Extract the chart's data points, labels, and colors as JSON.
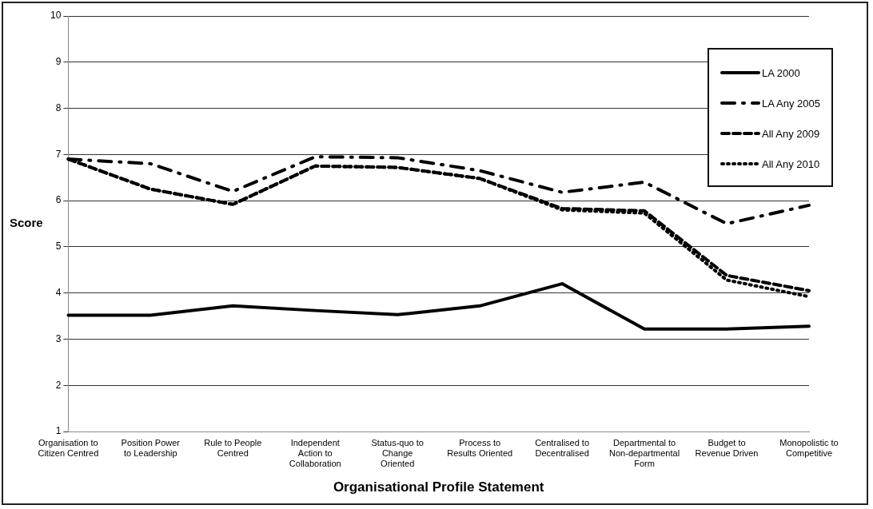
{
  "chart_data": {
    "type": "line",
    "xlabel": "Organisational Profile Statement",
    "ylabel": "Score",
    "categories": [
      "Organisation to Citizen Centred",
      "Position Power to Leadership",
      "Rule to People Centred",
      "Independent Action to Collaboration",
      "Status-quo to Change Oriented",
      "Process to Results Oriented",
      "Centralised to Decentralised",
      "Departmental to Non-departmental Form",
      "Budget to Revenue Driven",
      "Monopolistic to Competitive"
    ],
    "series": [
      {
        "name": "LA 2000",
        "color": "#000000",
        "line_style": "solid",
        "values": [
          3.52,
          3.52,
          3.72,
          3.62,
          3.53,
          3.72,
          4.2,
          3.22,
          3.22,
          3.28
        ]
      },
      {
        "name": "LA Any 2005",
        "color": "#000000",
        "line_style": "dashdot",
        "values": [
          6.9,
          6.8,
          6.2,
          6.95,
          6.93,
          6.65,
          6.18,
          6.4,
          5.5,
          5.9
        ]
      },
      {
        "name": "All Any 2009",
        "color": "#000000",
        "line_style": "dashed",
        "values": [
          6.9,
          6.25,
          5.92,
          6.75,
          6.72,
          6.48,
          5.83,
          5.78,
          4.38,
          4.05
        ]
      },
      {
        "name": "All Any 2010",
        "color": "#000000",
        "line_style": "dotted",
        "values": [
          6.9,
          6.25,
          5.92,
          6.75,
          6.72,
          6.48,
          5.8,
          5.73,
          4.28,
          3.92
        ]
      }
    ],
    "ylim": [
      1,
      10
    ],
    "yticks": [
      1,
      2,
      3,
      4,
      5,
      6,
      7,
      8,
      9,
      10
    ],
    "grid": "y",
    "legend": "top right",
    "marker": "none"
  }
}
